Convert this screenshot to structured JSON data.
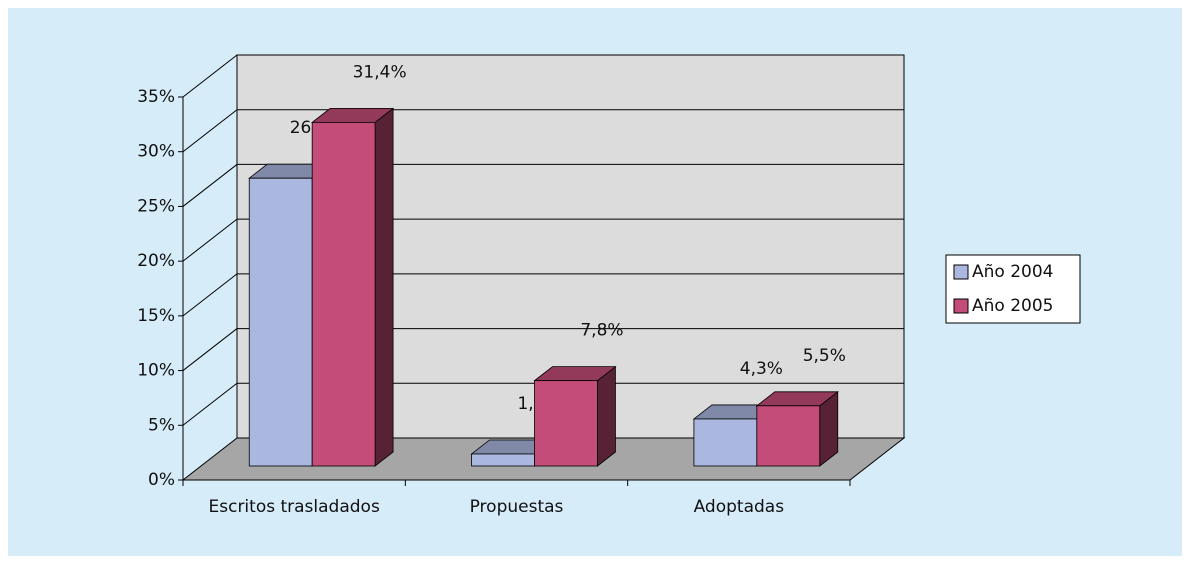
{
  "chart_data": {
    "type": "bar3d",
    "categories": [
      "Escritos trasladados",
      "Propuestas",
      "Adoptadas"
    ],
    "series": [
      {
        "name": "Año 2004",
        "color": "#aab8e0",
        "values": [
          26.3,
          1.1,
          4.3
        ],
        "value_labels": [
          "26,3%",
          "1,1%",
          "4,3%"
        ]
      },
      {
        "name": "Año 2005",
        "color": "#c44c78",
        "values": [
          31.4,
          7.8,
          5.5
        ],
        "value_labels": [
          "31,4%",
          "7,8%",
          "5,5%"
        ]
      }
    ],
    "ylim": [
      0,
      35
    ],
    "yticks": [
      {
        "value": 0,
        "label": "0%"
      },
      {
        "value": 5,
        "label": "5%"
      },
      {
        "value": 10,
        "label": "10%"
      },
      {
        "value": 15,
        "label": "15%"
      },
      {
        "value": 20,
        "label": "20%"
      },
      {
        "value": 25,
        "label": "25%"
      },
      {
        "value": 30,
        "label": "30%"
      },
      {
        "value": 35,
        "label": "35%"
      }
    ],
    "grid": true,
    "legend": "right"
  }
}
